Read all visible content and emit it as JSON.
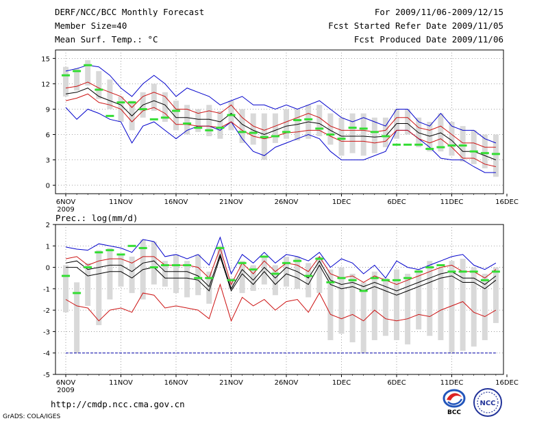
{
  "header": {
    "left": [
      "DERF/NCC/BCC Monthly Forecast",
      "Member Size=40",
      "Mean Surf. Temp.: °C"
    ],
    "right": [
      "For 2009/11/06-2009/12/15",
      "Fcst Started Refer Date 2009/11/05",
      "Fcst Produced Date 2009/11/06"
    ]
  },
  "footer": {
    "url": "http://cmdp.ncc.cma.gov.cn",
    "credit": "GrADS: COLA/IGES"
  },
  "logos": {
    "bcc": "BCC",
    "ncc": "NCC"
  },
  "colors": {
    "mean": "#000000",
    "spread": "#cc1111",
    "envelope": "#0000cc",
    "box": "#d9d9d9",
    "median": "#33dd33",
    "threshold": "#0000aa"
  },
  "chart_data": [
    {
      "type": "line",
      "title": "Mean Surf. Temp.: °C",
      "xlabel": "",
      "ylabel": "°C",
      "ylim": [
        -1,
        16
      ],
      "yticks": [
        0,
        3,
        6,
        9,
        12,
        15
      ],
      "xtick_labels": [
        "6NOV",
        "11NOV",
        "16NOV",
        "21NOV",
        "26NOV",
        "1DEC",
        "6DEC",
        "11DEC",
        "16DEC"
      ],
      "xtick_sublabel": "2009",
      "days": 40,
      "series": [
        {
          "name": "ensemble max",
          "color": "blue",
          "values": [
            9.2,
            7.8,
            9.0,
            8.5,
            7.8,
            7.5,
            5.0,
            7.0,
            7.5,
            6.5,
            5.5,
            6.5,
            7.0,
            7.0,
            6.5,
            7.5,
            5.5,
            4.0,
            3.5,
            4.5,
            5.0,
            5.5,
            6.0,
            5.5,
            4.0,
            3.0,
            3.0,
            3.0,
            3.5,
            4.0,
            6.5,
            6.5,
            5.5,
            4.5,
            3.2,
            3.0,
            3.0,
            2.2,
            1.5,
            1.5
          ]
        },
        {
          "name": "ensemble min",
          "color": "blue",
          "values": [
            13.5,
            13.8,
            14.2,
            14.0,
            13.0,
            11.5,
            10.5,
            12.0,
            13.0,
            12.0,
            10.5,
            11.5,
            11.0,
            10.5,
            9.5,
            10.0,
            10.5,
            9.5,
            9.5,
            9.0,
            9.5,
            9.0,
            9.5,
            10.0,
            9.0,
            8.0,
            7.5,
            8.0,
            7.5,
            7.0,
            9.0,
            9.0,
            7.5,
            7.0,
            8.5,
            7.0,
            6.5,
            6.5,
            5.5,
            5.0
          ]
        },
        {
          "name": "mean + spread",
          "color": "red",
          "values": [
            11.5,
            11.7,
            12.2,
            11.5,
            11.0,
            10.5,
            9.2,
            10.5,
            11.0,
            10.5,
            9.0,
            9.0,
            8.5,
            8.8,
            8.5,
            9.5,
            8.0,
            7.0,
            6.5,
            7.0,
            7.5,
            8.0,
            8.5,
            8.0,
            7.0,
            6.5,
            6.5,
            6.5,
            6.3,
            6.5,
            8.0,
            8.0,
            6.8,
            6.5,
            7.0,
            6.0,
            5.0,
            5.0,
            4.5,
            4.5
          ]
        },
        {
          "name": "ensemble mean",
          "color": "black",
          "values": [
            10.8,
            11.0,
            11.5,
            10.5,
            10.0,
            9.5,
            8.2,
            9.5,
            10.0,
            9.5,
            8.0,
            8.0,
            7.8,
            7.8,
            7.5,
            8.5,
            7.2,
            6.5,
            6.0,
            6.5,
            7.0,
            7.2,
            7.5,
            7.3,
            6.5,
            5.8,
            5.8,
            5.8,
            5.7,
            5.8,
            7.3,
            7.3,
            6.2,
            5.8,
            6.2,
            5.3,
            4.0,
            4.0,
            3.5,
            3.0
          ]
        },
        {
          "name": "mean - spread",
          "color": "red",
          "values": [
            10.0,
            10.3,
            10.8,
            9.8,
            9.5,
            9.0,
            7.5,
            8.8,
            9.2,
            8.5,
            7.2,
            7.2,
            7.0,
            7.0,
            6.8,
            7.5,
            6.5,
            5.8,
            5.5,
            5.8,
            6.2,
            6.3,
            6.5,
            6.5,
            5.8,
            5.2,
            5.2,
            5.2,
            5.0,
            5.2,
            6.5,
            6.5,
            5.5,
            5.0,
            5.5,
            4.5,
            3.2,
            3.2,
            2.5,
            2.2
          ]
        }
      ],
      "boxes": {
        "low": [
          10.5,
          11.2,
          11.8,
          10.2,
          9.0,
          7.5,
          6.5,
          8.0,
          8.8,
          7.5,
          6.5,
          6.0,
          6.3,
          5.8,
          5.5,
          6.5,
          5.0,
          4.8,
          3.0,
          5.0,
          5.5,
          5.3,
          5.5,
          5.8,
          4.8,
          3.5,
          3.8,
          3.5,
          3.8,
          4.5,
          5.5,
          6.0,
          4.5,
          4.0,
          4.0,
          3.5,
          2.8,
          2.5,
          2.0,
          1.0
        ],
        "high": [
          14.0,
          13.8,
          14.8,
          13.5,
          12.5,
          10.5,
          10.0,
          11.0,
          12.0,
          11.0,
          10.0,
          9.5,
          9.0,
          9.5,
          8.8,
          10.0,
          9.0,
          8.5,
          8.5,
          8.5,
          9.0,
          9.0,
          9.5,
          9.5,
          8.5,
          8.0,
          8.5,
          8.5,
          8.0,
          8.0,
          9.0,
          9.0,
          8.0,
          7.5,
          8.5,
          7.5,
          7.0,
          6.5,
          6.0,
          6.0
        ],
        "median": [
          13.0,
          13.5,
          14.2,
          11.3,
          8.2,
          9.8,
          9.8,
          9.0,
          7.8,
          8.0,
          8.8,
          7.3,
          6.8,
          6.5,
          6.8,
          8.3,
          6.3,
          6.2,
          5.7,
          5.8,
          6.3,
          7.7,
          7.8,
          6.7,
          6.0,
          5.5,
          6.8,
          6.7,
          6.3,
          5.8,
          4.8,
          4.8,
          4.8,
          4.3,
          4.5,
          4.7,
          4.7,
          4.0,
          3.8,
          3.7
        ]
      }
    },
    {
      "type": "line",
      "title": "Prec.: log(mm/d)",
      "xlabel": "",
      "ylabel": "log(mm/d)",
      "ylim": [
        -5,
        2
      ],
      "yticks": [
        -5,
        -4,
        -3,
        -2,
        -1,
        0,
        1,
        2
      ],
      "xtick_labels": [
        "6NOV",
        "11NOV",
        "16NOV",
        "21NOV",
        "26NOV",
        "1DEC",
        "6DEC",
        "11DEC",
        "16DEC"
      ],
      "xtick_sublabel": "2009",
      "days": 40,
      "threshold": -4,
      "series": [
        {
          "name": "ensemble max",
          "color": "blue",
          "values": [
            0.95,
            0.85,
            0.8,
            1.1,
            1.0,
            0.9,
            0.7,
            1.3,
            1.2,
            0.5,
            0.6,
            0.4,
            0.6,
            0.1,
            1.4,
            -0.3,
            0.6,
            0.2,
            0.7,
            0.2,
            0.6,
            0.5,
            0.3,
            0.7,
            0.0,
            0.4,
            0.2,
            -0.3,
            0.1,
            -0.5,
            0.3,
            0.0,
            -0.1,
            0.1,
            0.3,
            0.5,
            0.6,
            0.1,
            -0.1,
            0.2
          ]
        },
        {
          "name": "mean + spread",
          "color": "red",
          "values": [
            0.4,
            0.5,
            0.1,
            0.3,
            0.4,
            0.4,
            0.2,
            0.5,
            0.5,
            0.1,
            0.1,
            0.1,
            0.0,
            -0.5,
            0.9,
            -0.8,
            0.2,
            -0.3,
            0.3,
            -0.2,
            0.2,
            0.1,
            -0.2,
            0.5,
            -0.3,
            -0.5,
            -0.4,
            -0.7,
            -0.4,
            -0.6,
            -0.8,
            -0.6,
            -0.4,
            -0.2,
            0.0,
            0.1,
            -0.2,
            -0.2,
            -0.5,
            -0.1
          ]
        },
        {
          "name": "ensemble mean",
          "color": "black",
          "values": [
            0.2,
            0.3,
            -0.1,
            0.0,
            0.1,
            0.1,
            -0.2,
            0.2,
            0.3,
            -0.2,
            -0.2,
            -0.2,
            -0.4,
            -0.9,
            0.6,
            -1.0,
            -0.1,
            -0.6,
            0.0,
            -0.5,
            0.0,
            -0.2,
            -0.5,
            0.3,
            -0.6,
            -0.8,
            -0.7,
            -0.9,
            -0.7,
            -0.9,
            -1.1,
            -0.9,
            -0.7,
            -0.5,
            -0.3,
            -0.2,
            -0.5,
            -0.5,
            -0.8,
            -0.4
          ]
        },
        {
          "name": "mean - spread",
          "color": "black",
          "values": [
            0.0,
            0.0,
            -0.4,
            -0.3,
            -0.2,
            -0.2,
            -0.5,
            -0.1,
            0.0,
            -0.5,
            -0.5,
            -0.5,
            -0.6,
            -1.1,
            0.5,
            -1.1,
            -0.3,
            -0.8,
            -0.2,
            -0.8,
            -0.3,
            -0.5,
            -0.8,
            0.1,
            -0.8,
            -1.0,
            -0.9,
            -1.1,
            -0.9,
            -1.1,
            -1.3,
            -1.1,
            -0.9,
            -0.7,
            -0.5,
            -0.4,
            -0.7,
            -0.7,
            -1.0,
            -0.6
          ]
        },
        {
          "name": "ensemble min",
          "color": "red",
          "values": [
            -1.5,
            -1.8,
            -1.9,
            -2.5,
            -2.0,
            -1.9,
            -2.1,
            -1.2,
            -1.3,
            -1.9,
            -1.8,
            -1.9,
            -2.0,
            -2.4,
            -0.8,
            -2.5,
            -1.4,
            -1.8,
            -1.5,
            -2.0,
            -1.6,
            -1.5,
            -2.1,
            -1.2,
            -2.2,
            -2.4,
            -2.2,
            -2.5,
            -2.0,
            -2.4,
            -2.5,
            -2.4,
            -2.2,
            -2.3,
            -2.0,
            -1.8,
            -1.6,
            -2.1,
            -2.3,
            -2.0
          ]
        }
      ],
      "boxes": {
        "low": [
          -2.1,
          -4.0,
          -1.8,
          -2.7,
          -1.5,
          -0.9,
          -1.2,
          -1.5,
          -0.8,
          -0.9,
          -1.2,
          -1.4,
          -1.3,
          -1.7,
          0.3,
          -1.0,
          -1.2,
          -1.1,
          -0.8,
          -1.3,
          -0.9,
          -1.0,
          -1.4,
          -1.2,
          -3.4,
          -3.1,
          -3.5,
          -4.0,
          -3.4,
          -3.2,
          -3.4,
          -3.6,
          -2.9,
          -3.2,
          -3.4,
          -4.0,
          -3.9,
          -3.7,
          -3.4,
          -2.6
        ],
        "high": [
          0.1,
          -0.7,
          0.2,
          0.8,
          0.9,
          0.6,
          0.5,
          1.3,
          1.2,
          0.3,
          0.6,
          0.3,
          0.6,
          -0.2,
          1.0,
          -0.5,
          0.3,
          0.1,
          0.5,
          0.1,
          0.5,
          0.5,
          0.2,
          0.5,
          -0.1,
          0.0,
          -0.3,
          -0.7,
          -0.2,
          -0.5,
          -0.1,
          -0.3,
          -0.1,
          0.3,
          0.0,
          0.3,
          0.4,
          0.0,
          -0.3,
          0.0
        ],
        "median": [
          -0.4,
          -1.2,
          0.0,
          0.7,
          0.8,
          0.6,
          1.0,
          0.9,
          0.0,
          0.1,
          0.1,
          0.1,
          -0.5,
          -0.5,
          0.9,
          -0.6,
          0.2,
          -0.1,
          0.5,
          -0.3,
          0.2,
          0.3,
          -0.4,
          0.4,
          -0.7,
          -0.5,
          -0.6,
          -1.1,
          -0.5,
          -0.6,
          -0.6,
          -0.5,
          -0.2,
          0.0,
          0.1,
          -0.2,
          -0.2,
          -0.2,
          -0.6,
          -0.2
        ]
      }
    }
  ]
}
